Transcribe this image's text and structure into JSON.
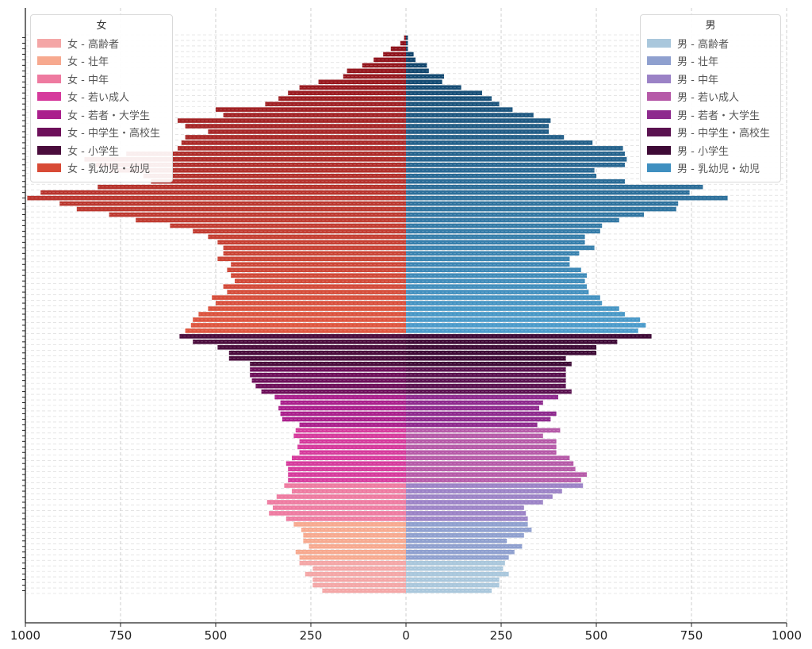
{
  "chart_data": {
    "type": "bar",
    "orientation": "horizontal",
    "variant": "population-pyramid",
    "xlim": [
      -1000,
      1000
    ],
    "xticks": [
      -1000,
      -750,
      -500,
      -250,
      0,
      250,
      500,
      750,
      1000
    ],
    "xtick_labels": [
      "1000",
      "750",
      "500",
      "250",
      "0",
      "250",
      "500",
      "750",
      "1000"
    ],
    "grid": true,
    "ages_top_to_bottom": "100..0",
    "groups": [
      {
        "key": "elderly",
        "label_female": "女 - 高齢者",
        "label_male": "男 - 高齢者",
        "color_female": "#f4a6a6",
        "color_male": "#a9c7dc",
        "age_min": 0,
        "age_max": 5
      },
      {
        "key": "adult",
        "label_female": "女 - 壮年",
        "label_male": "男 - 壮年",
        "color_female": "#f7a98f",
        "color_male": "#8fa0cf",
        "age_min": 6,
        "age_max": 12
      },
      {
        "key": "middle",
        "label_female": "女 - 中年",
        "label_male": "男 - 中年",
        "color_female": "#ee7aa0",
        "color_male": "#9b82c6",
        "age_min": 13,
        "age_max": 19
      },
      {
        "key": "young_adult",
        "label_female": "女 - 若い成人",
        "label_male": "男 - 若い成人",
        "color_female": "#d63a9c",
        "color_male": "#b65aa8",
        "age_min": 20,
        "age_max": 29
      },
      {
        "key": "youth_student",
        "label_female": "女 - 若者・大学生",
        "label_male": "男 - 若者・大学生",
        "color_female": "#aa1f8c",
        "color_male": "#8e2a8e",
        "age_min": 30,
        "age_max": 35
      },
      {
        "key": "school",
        "label_female": "女 - 中学生・高校生",
        "label_male": "男 - 中学生・高校生",
        "color_female": "#6d0f5a",
        "color_male": "#5a1250",
        "age_min": 36,
        "age_max": 40
      },
      {
        "key": "elementary",
        "label_female": "女 - 小学生",
        "label_male": "男 - 小学生",
        "color_female": "#4a0c3c",
        "color_male": "#3e0a36",
        "age_min": 41,
        "age_max": 46
      },
      {
        "key": "infant",
        "label_female": "女 - 乳幼児・幼児",
        "label_male": "男 - 乳幼児・幼児",
        "color_female": "#d84a36",
        "color_male": "#3f8fc0",
        "age_min": 47,
        "age_max": 100
      }
    ],
    "series": [
      {
        "name": "女",
        "side": "left",
        "values": [
          220,
          245,
          245,
          265,
          245,
          280,
          280,
          290,
          255,
          270,
          270,
          275,
          295,
          315,
          360,
          350,
          365,
          340,
          300,
          320,
          310,
          310,
          310,
          315,
          300,
          280,
          285,
          280,
          295,
          290,
          280,
          325,
          330,
          335,
          330,
          345,
          380,
          395,
          405,
          410,
          410,
          410,
          465,
          465,
          495,
          560,
          595,
          580,
          565,
          560,
          545,
          520,
          500,
          510,
          470,
          480,
          450,
          460,
          470,
          460,
          495,
          480,
          480,
          495,
          520,
          560,
          620,
          710,
          780,
          865,
          910,
          995,
          960,
          810,
          670,
          690,
          780,
          815,
          845,
          735,
          600,
          590,
          580,
          520,
          580,
          600,
          480,
          500,
          370,
          335,
          310,
          280,
          230,
          165,
          155,
          115,
          85,
          60,
          40,
          15,
          5
        ]
      },
      {
        "name": "男",
        "side": "right",
        "values": [
          225,
          245,
          245,
          270,
          255,
          260,
          270,
          285,
          305,
          265,
          310,
          330,
          320,
          320,
          315,
          310,
          360,
          385,
          410,
          465,
          460,
          475,
          445,
          440,
          430,
          395,
          395,
          395,
          360,
          405,
          345,
          380,
          395,
          350,
          360,
          400,
          435,
          420,
          420,
          420,
          420,
          435,
          420,
          500,
          500,
          555,
          645,
          610,
          630,
          615,
          575,
          560,
          515,
          510,
          480,
          475,
          470,
          475,
          460,
          430,
          430,
          455,
          495,
          470,
          470,
          510,
          515,
          560,
          625,
          710,
          715,
          845,
          745,
          780,
          575,
          500,
          495,
          575,
          580,
          575,
          570,
          490,
          415,
          375,
          375,
          380,
          335,
          280,
          245,
          225,
          200,
          145,
          95,
          100,
          60,
          55,
          25,
          20,
          5,
          5,
          5
        ]
      }
    ],
    "legend": {
      "left": {
        "title": "女",
        "placement": "top-left"
      },
      "right": {
        "title": "男",
        "placement": "top-right"
      }
    }
  }
}
